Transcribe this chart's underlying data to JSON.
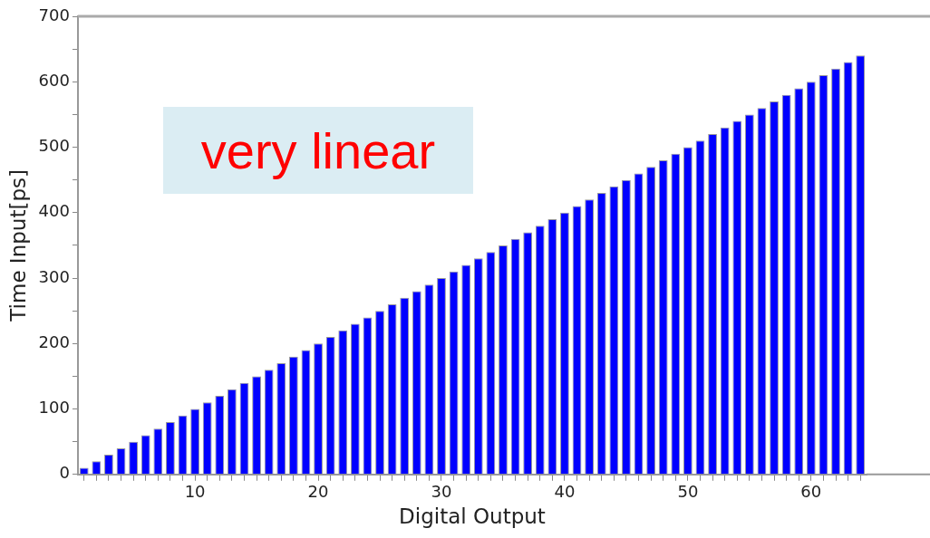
{
  "chart_data": {
    "type": "bar",
    "xlabel": "Digital Output",
    "ylabel": "Time Input[ps]",
    "annotations": [
      "very linear"
    ],
    "categories": [
      null,
      null,
      null,
      null,
      null,
      null,
      null,
      null,
      null,
      "10",
      null,
      null,
      null,
      null,
      null,
      null,
      null,
      null,
      null,
      "20",
      null,
      null,
      null,
      null,
      null,
      null,
      null,
      null,
      null,
      "30",
      null,
      null,
      null,
      null,
      null,
      null,
      null,
      null,
      null,
      "40",
      null,
      null,
      null,
      null,
      null,
      null,
      null,
      null,
      null,
      "50",
      null,
      null,
      null,
      null,
      null,
      null,
      null,
      null,
      null,
      "60",
      null,
      null,
      null,
      null
    ],
    "values": [
      10,
      20,
      30,
      40,
      50,
      60,
      70,
      80,
      90,
      100,
      110,
      120,
      130,
      140,
      150,
      160,
      170,
      180,
      190,
      200,
      210,
      220,
      230,
      240,
      250,
      260,
      270,
      280,
      290,
      300,
      310,
      320,
      330,
      340,
      350,
      360,
      370,
      380,
      390,
      400,
      410,
      420,
      430,
      440,
      450,
      460,
      470,
      480,
      490,
      500,
      510,
      520,
      530,
      540,
      550,
      560,
      570,
      580,
      590,
      600,
      610,
      620,
      630,
      640
    ],
    "color": "#0000ff",
    "ylim": [
      0,
      700
    ],
    "yticks": [
      0,
      {
        "value": 50,
        "label": null
      },
      100,
      {
        "value": 150,
        "label": null
      },
      200,
      {
        "value": 250,
        "label": null
      },
      300,
      {
        "value": 350,
        "label": null
      },
      400,
      {
        "value": 450,
        "label": null
      },
      500,
      {
        "value": 550,
        "label": null
      },
      600,
      {
        "value": 650,
        "label": null
      },
      700
    ],
    "grid": false
  }
}
